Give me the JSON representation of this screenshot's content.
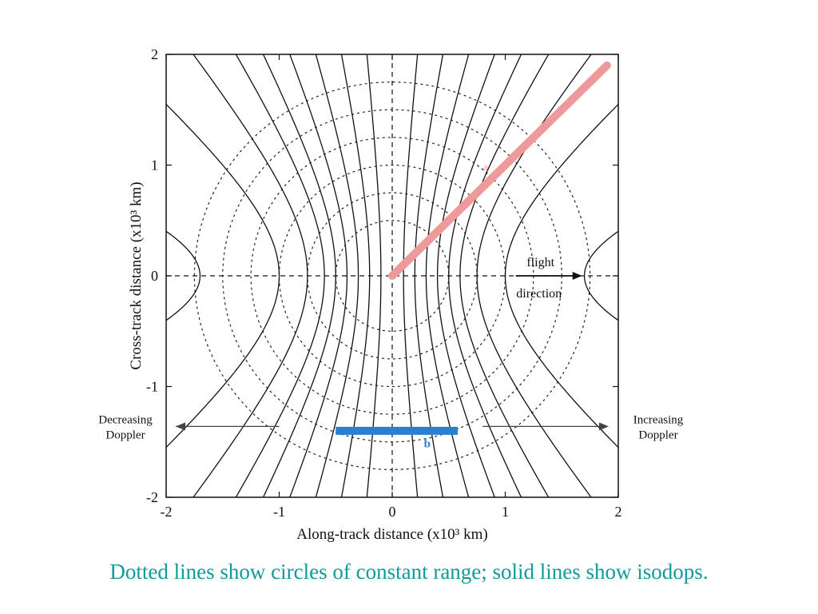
{
  "chart_data": {
    "type": "line",
    "xlabel": "Along-track distance (x10³ km)",
    "ylabel": "Cross-track distance (x10³ km)",
    "xlim": [
      -2,
      2
    ],
    "ylim": [
      -2,
      2
    ],
    "xticks": [
      "-2",
      "-1",
      "0",
      "1",
      "2"
    ],
    "yticks": [
      "-2",
      "-1",
      "0",
      "1",
      "2"
    ],
    "range_circles": {
      "style": "dotted",
      "radii": [
        0.5,
        0.75,
        1.0,
        1.25,
        1.5,
        1.75
      ]
    },
    "isodops": {
      "style": "solid",
      "x_at_zero_cross_track": [
        0.1,
        0.2,
        0.3,
        0.4,
        0.5,
        0.6,
        0.75,
        1.0,
        1.7
      ]
    },
    "highlight_lines": [
      {
        "name": "a",
        "color": "#ef9a9a",
        "points": [
          [
            0.0,
            0.0
          ],
          [
            1.9,
            1.9
          ]
        ],
        "label_at": [
          0.8,
          0.95
        ]
      },
      {
        "name": "b",
        "color": "#2a7fcf",
        "points": [
          [
            -0.5,
            -1.4
          ],
          [
            0.58,
            -1.4
          ]
        ],
        "label_at": [
          0.28,
          -1.55
        ]
      }
    ],
    "annotations": {
      "flight_top": "flight",
      "flight_bottom": "direction",
      "decreasing_line1": "Decreasing",
      "decreasing_line2": "Doppler",
      "increasing_line1": "Increasing",
      "increasing_line2": "Doppler"
    }
  },
  "caption": "Dotted lines show circles of constant range; solid lines show isodops."
}
